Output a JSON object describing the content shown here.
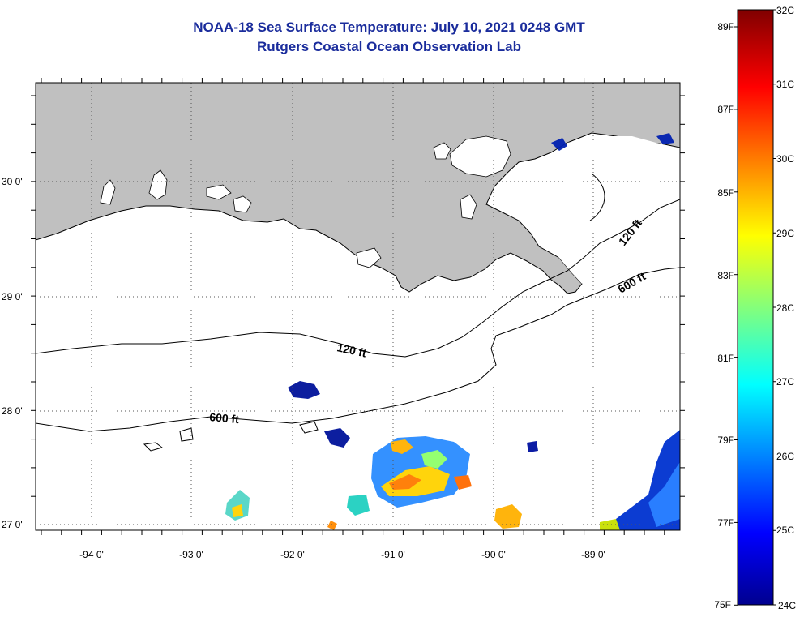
{
  "header": {
    "title_line1": "NOAA-18 Sea Surface Temperature:  July 10, 2021 0248 GMT",
    "title_line2": "Rutgers Coastal Ocean Observation Lab"
  },
  "map": {
    "lon_labels": [
      "-94 0'",
      "-93 0'",
      "-92 0'",
      "-91 0'",
      "-90 0'",
      "-89 0'"
    ],
    "lat_labels": [
      "30 0'",
      "29 0'",
      "28 0'",
      "27 0'"
    ],
    "contour_labels": [
      "120 ft",
      "600 ft",
      "120 ft",
      "600 ft"
    ],
    "land_color": "#c0c0c0",
    "water_color": "#ffffff"
  },
  "colorbar": {
    "celsius_labels": [
      "32C",
      "31C",
      "30C",
      "29C",
      "28C",
      "27C",
      "26C",
      "25C",
      "24C"
    ],
    "fahrenheit_labels": [
      "89F",
      "87F",
      "85F",
      "83F",
      "81F",
      "79F",
      "77F",
      "75F"
    ],
    "range_c": [
      24,
      32
    ],
    "colors": [
      "#00008f",
      "#0000ff",
      "#00ffff",
      "#ffff00",
      "#ff0000",
      "#800000"
    ]
  }
}
